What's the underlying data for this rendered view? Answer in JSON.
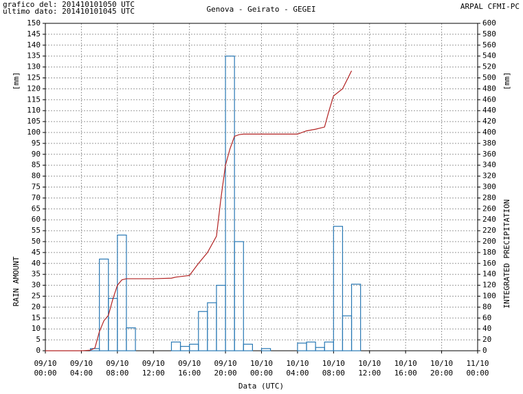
{
  "chart_data": {
    "type": "bar",
    "header_lines": [
      "grafico del: 201410101050 UTC",
      "ultimo dato: 201410101045 UTC"
    ],
    "title": "Genova - Geirato - GEGEI",
    "source": "ARPAL CFMI-PC",
    "x_label": "Data (UTC)",
    "y_label": "RAIN AMOUNT",
    "y_unit": "[mm]",
    "y2_label": "INTEGRATED PRECIPITATION",
    "y2_unit": "[mm]",
    "grid": true,
    "xlim": [
      {
        "date": "09/10",
        "time": "00:00"
      },
      {
        "date": "11/10",
        "time": "00:00"
      }
    ],
    "xticks": [
      {
        "date": "09/10",
        "time": "00:00"
      },
      {
        "date": "09/10",
        "time": "04:00"
      },
      {
        "date": "09/10",
        "time": "08:00"
      },
      {
        "date": "09/10",
        "time": "12:00"
      },
      {
        "date": "09/10",
        "time": "16:00"
      },
      {
        "date": "09/10",
        "time": "20:00"
      },
      {
        "date": "10/10",
        "time": "00:00"
      },
      {
        "date": "10/10",
        "time": "04:00"
      },
      {
        "date": "10/10",
        "time": "08:00"
      },
      {
        "date": "10/10",
        "time": "12:00"
      },
      {
        "date": "10/10",
        "time": "16:00"
      },
      {
        "date": "10/10",
        "time": "20:00"
      },
      {
        "date": "11/10",
        "time": "00:00"
      }
    ],
    "ylim": [
      0,
      150
    ],
    "yticks": [
      0,
      5,
      10,
      15,
      20,
      25,
      30,
      35,
      40,
      45,
      50,
      55,
      60,
      65,
      70,
      75,
      80,
      85,
      90,
      95,
      100,
      105,
      110,
      115,
      120,
      125,
      130,
      135,
      140,
      145,
      150
    ],
    "y2lim": [
      0,
      600
    ],
    "y2ticks": [
      0,
      20,
      40,
      60,
      80,
      100,
      120,
      140,
      160,
      180,
      200,
      220,
      240,
      260,
      280,
      300,
      320,
      340,
      360,
      380,
      400,
      420,
      440,
      460,
      480,
      500,
      520,
      540,
      560,
      580,
      600
    ],
    "series": [
      {
        "type": "bar",
        "color": "#2878b4",
        "x": [
          "09/10 05:00",
          "09/10 06:00",
          "09/10 07:00",
          "09/10 08:00",
          "09/10 09:00",
          "09/10 14:00",
          "09/10 15:00",
          "09/10 16:00",
          "09/10 17:00",
          "09/10 18:00",
          "09/10 19:00",
          "09/10 20:00",
          "09/10 21:00",
          "09/10 22:00",
          "10/10 00:00",
          "10/10 04:00",
          "10/10 05:00",
          "10/10 06:00",
          "10/10 07:00",
          "10/10 08:00",
          "10/10 09:00",
          "10/10 10:00"
        ],
        "values": [
          1,
          42,
          24,
          53,
          10.5,
          4,
          2,
          3,
          18,
          22,
          30,
          135,
          50,
          3,
          1,
          3.5,
          4,
          1.5,
          4,
          57,
          16,
          30.5
        ]
      },
      {
        "type": "line",
        "axis": "y2",
        "color": "#b22222",
        "x": [
          "09/10 00:00",
          "09/10 04:00",
          "09/10 05:00",
          "09/10 05:30",
          "09/10 06:00",
          "09/10 06:30",
          "09/10 07:00",
          "09/10 07:30",
          "09/10 08:00",
          "09/10 08:30",
          "09/10 09:00",
          "09/10 12:00",
          "09/10 14:00",
          "09/10 14:30",
          "09/10 16:00",
          "09/10 17:00",
          "09/10 18:00",
          "09/10 19:00",
          "09/10 19:30",
          "09/10 20:00",
          "09/10 20:30",
          "09/10 21:00",
          "09/10 21:30",
          "09/10 22:00",
          "10/10 04:00",
          "10/10 05:00",
          "10/10 06:00",
          "10/10 07:00",
          "10/10 07:30",
          "10/10 08:00",
          "10/10 09:00",
          "10/10 10:00"
        ],
        "values": [
          0,
          0,
          1,
          5,
          35,
          55,
          65,
          95,
          120,
          130,
          132,
          132,
          133,
          135,
          138,
          160,
          180,
          210,
          280,
          340,
          370,
          393,
          396,
          397,
          397,
          403,
          406,
          410,
          440,
          467,
          480,
          513
        ]
      }
    ]
  }
}
